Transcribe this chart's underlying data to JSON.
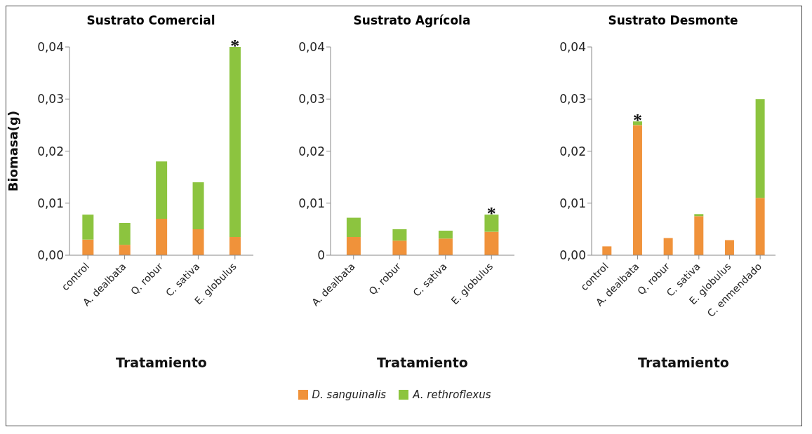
{
  "chart_data": [
    {
      "type": "bar",
      "title": "Sustrato  Comercial",
      "xlabel": "Tratamiento",
      "ylabel": "Biomasa(g)",
      "stacked": true,
      "categories": [
        "control",
        "A. dealbata",
        "Q. robur",
        "C. sativa",
        "E. globulus"
      ],
      "series": [
        {
          "color": "#f0923a",
          "values": [
            0.003,
            0.002,
            0.007,
            0.005,
            0.0035
          ]
        },
        {
          "color": "#8cc43f",
          "values": [
            0.0048,
            0.0042,
            0.011,
            0.009,
            0.0365
          ]
        }
      ],
      "ylim": [
        0,
        0.04
      ],
      "yticks": [
        {
          "value": 0,
          "label": "0,00"
        },
        {
          "value": 0.01,
          "label": "0,01"
        },
        {
          "value": 0.02,
          "label": "0,02"
        },
        {
          "value": 0.03,
          "label": "0,03"
        },
        {
          "value": 0.04,
          "label": "0,04"
        }
      ],
      "grid": false,
      "annotations": [
        {
          "text": "*",
          "x": "E. globulus",
          "y": 0.04
        }
      ]
    },
    {
      "type": "bar",
      "title": "Sustrato  Agrícola",
      "xlabel": "Tratamiento",
      "stacked": true,
      "categories": [
        "A. dealbata",
        "Q. robur",
        "C. sativa",
        "E. globulus"
      ],
      "series": [
        {
          "name": "D. sanguinalis",
          "color": "#f0923a",
          "values": [
            0.0035,
            0.0028,
            0.0032,
            0.0045
          ]
        },
        {
          "name": "A. rethroflexus",
          "color": "#8cc43f",
          "values": [
            0.0037,
            0.0022,
            0.0015,
            0.0033
          ]
        }
      ],
      "ylim": [
        0,
        0.04
      ],
      "yticks": [
        0,
        {
          "value": 0.01,
          "label": "0,01"
        },
        {
          "value": 0.02,
          "label": "0,02"
        },
        {
          "value": 0.03,
          "label": "0,03"
        },
        {
          "value": 0.04,
          "label": "0,04"
        }
      ],
      "grid": false,
      "legend": "bottom",
      "annotations": [
        {
          "text": "*",
          "x": "E. globulus",
          "y": 0.0078
        }
      ]
    },
    {
      "type": "bar",
      "title": "Sustrato  Desmonte",
      "xlabel": "Tratamiento",
      "stacked": true,
      "categories": [
        "control",
        "A. dealbata",
        "Q. robur",
        "C. sativa",
        "E. globulus",
        "C. enmendado"
      ],
      "series": [
        {
          "color": "#f0923a",
          "values": [
            0.0017,
            0.025,
            0.0033,
            0.0075,
            0.0029,
            0.011
          ]
        },
        {
          "color": "#8cc43f",
          "values": [
            0,
            0.0007,
            0,
            0.0004,
            0,
            0.019
          ]
        }
      ],
      "ylim": [
        0,
        0.04
      ],
      "yticks": [
        {
          "value": 0,
          "label": "0,00"
        },
        {
          "value": 0.01,
          "label": "0,01"
        },
        {
          "value": 0.02,
          "label": "0,02"
        },
        {
          "value": 0.03,
          "label": "0,03"
        },
        {
          "value": 0.04,
          "label": "0,04"
        }
      ],
      "grid": false,
      "annotations": [
        {
          "text": "*",
          "x": "A. dealbata",
          "y": 0.0257
        }
      ]
    }
  ]
}
